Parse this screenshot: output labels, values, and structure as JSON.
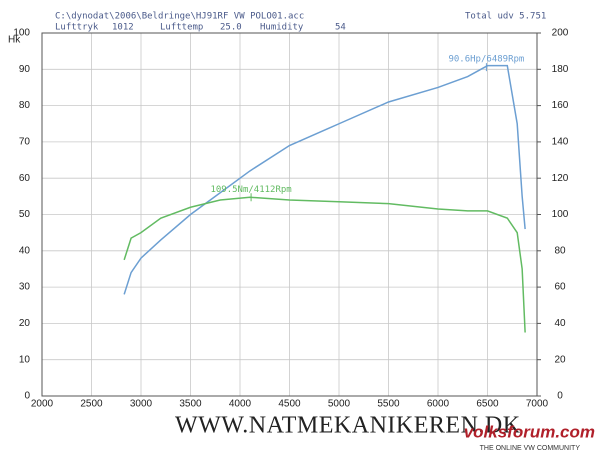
{
  "chart_data": {
    "type": "line",
    "file": "C:\\dynodat\\2006\\Beldringe\\HJ91RF VW POLO01.acc",
    "total": "Total udv 5.751",
    "info": [
      {
        "label": "Lufttryk",
        "value": "1012"
      },
      {
        "label": "Lufttemp",
        "value": "25.0"
      },
      {
        "label": "Humidity",
        "value": "54"
      }
    ],
    "ylabel": "Hk",
    "x": [
      2830,
      2900,
      3000,
      3200,
      3500,
      3800,
      4100,
      4500,
      5000,
      5500,
      6000,
      6300,
      6500,
      6700,
      6800,
      6850,
      6880
    ],
    "series": [
      {
        "name": "Hk",
        "color": "#6c9fd2",
        "values": [
          28,
          34,
          38,
          43,
          50,
          56,
          62,
          69,
          75,
          81,
          85,
          88,
          91,
          91,
          75,
          55,
          46
        ]
      },
      {
        "name": "Nm",
        "color": "#62bb62",
        "axis": "y2",
        "values": [
          75,
          87,
          90,
          98,
          104,
          108,
          109.5,
          108,
          107,
          106,
          103,
          102,
          102,
          98,
          90,
          70,
          35
        ]
      }
    ],
    "peaks": [
      {
        "label": "109.5Nm/4112Rpm",
        "x": 4112,
        "y": 109.5,
        "axis": "y2",
        "color": "#62bb62"
      },
      {
        "label": "90.6Hp/6489Rpm",
        "x": 6489,
        "y": 90.6,
        "axis": "y",
        "color": "#6c9fd2"
      }
    ],
    "xlim": [
      2000,
      7000
    ],
    "xticks": [
      2000,
      2500,
      3000,
      3500,
      4000,
      4500,
      5000,
      5500,
      6000,
      6500,
      7000
    ],
    "ylim": [
      0,
      100
    ],
    "yticks": [
      0,
      10,
      20,
      30,
      40,
      50,
      60,
      70,
      80,
      90,
      100
    ],
    "y2lim": [
      0,
      200
    ],
    "y2ticks": [
      0,
      20,
      40,
      60,
      80,
      100,
      120,
      140,
      160,
      180,
      200
    ],
    "grid": true,
    "footer": "WWW.NATMEKANIKEREN.DK",
    "brand": "volksforum.com",
    "brand_tagline": "THE ONLINE VW COMMUNITY"
  }
}
